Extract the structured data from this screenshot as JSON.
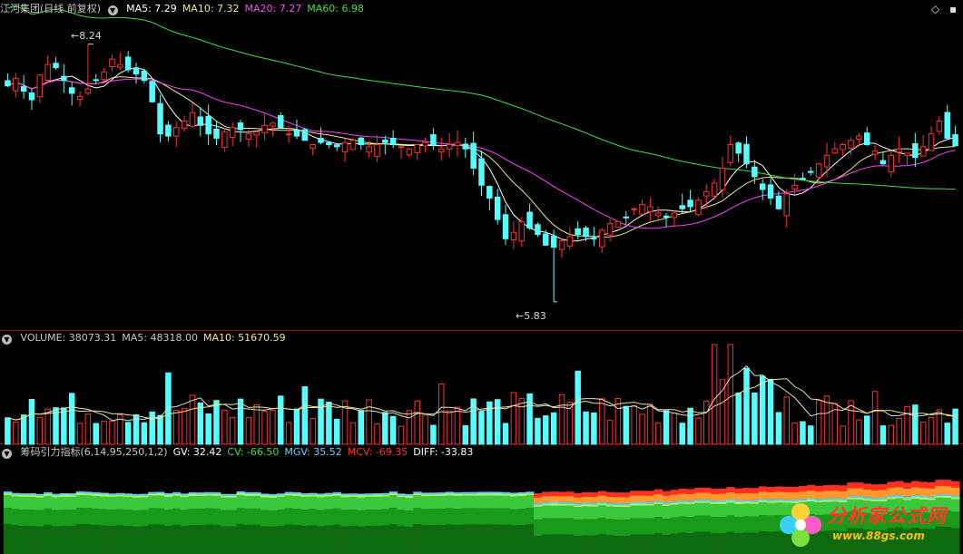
{
  "main_panel": {
    "title": "江河集团(日线 前复权)",
    "ma": [
      {
        "label": "MA5: 7.29",
        "color": "#ffffff"
      },
      {
        "label": "MA10: 7.32",
        "color": "#f0e68c"
      },
      {
        "label": "MA20: 7.27",
        "color": "#ff40ff"
      },
      {
        "label": "MA60: 6.98",
        "color": "#40e040"
      }
    ],
    "high_label": "8.24",
    "low_label": "5.83"
  },
  "volume_panel": {
    "legend": [
      {
        "label": "VOLUME: 38073.31",
        "color": "#c8c8c8"
      },
      {
        "label": "MA5: 48318.00",
        "color": "#c8c8c8"
      },
      {
        "label": "MA10: 51670.59",
        "color": "#f0e68c"
      }
    ]
  },
  "indicator_panel": {
    "legend": [
      {
        "label": "筹码引力指标(6,14,95,250,1,2)",
        "color": "#c8c8c8"
      },
      {
        "label": "GV: 32.42",
        "color": "#ffffff"
      },
      {
        "label": "CV: -66.50",
        "color": "#40e040"
      },
      {
        "label": "MGV: 35.52",
        "color": "#6fd0ff"
      },
      {
        "label": "MCV: -69.35",
        "color": "#ff3030"
      },
      {
        "label": "DIFF: -33.83",
        "color": "#ffffff"
      }
    ]
  },
  "colors": {
    "up": "#ff3030",
    "down": "#54ffff",
    "divider": "#b00000"
  },
  "watermark": {
    "cn": "分析家公式网",
    "url": "www.88gs.com"
  },
  "chart_data": {
    "type": "candlestick",
    "ylim": [
      5.6,
      8.5
    ],
    "high": 8.24,
    "low": 5.83,
    "ma_last": {
      "MA5": 7.29,
      "MA10": 7.32,
      "MA20": 7.27,
      "MA60": 6.98
    },
    "volume_last": {
      "VOLUME": 38073.31,
      "MA5": 48318.0,
      "MA10": 51670.59
    },
    "indicator_last": {
      "GV": 32.42,
      "CV": -66.5,
      "MGV": 35.52,
      "MCV": -69.35,
      "DIFF": -33.83
    },
    "close_path": [
      7.85,
      7.92,
      7.8,
      7.72,
      7.95,
      8.05,
      8.02,
      7.9,
      7.78,
      7.75,
      7.82,
      7.9,
      7.98,
      8.1,
      8.05,
      8.0,
      7.96,
      7.9,
      7.7,
      7.4,
      7.38,
      7.46,
      7.52,
      7.6,
      7.48,
      7.4,
      7.36,
      7.42,
      7.46,
      7.44,
      7.4,
      7.42,
      7.48,
      7.5,
      7.46,
      7.4,
      7.38,
      7.34,
      7.3,
      7.32,
      7.3,
      7.28,
      7.32,
      7.34,
      7.3,
      7.28,
      7.3,
      7.32,
      7.3,
      7.28,
      7.26,
      7.3,
      7.32,
      7.3,
      7.26,
      7.3,
      7.32,
      7.26,
      7.08,
      6.92,
      6.8,
      6.6,
      6.42,
      6.48,
      6.58,
      6.52,
      6.46,
      6.36,
      6.34,
      6.4,
      6.44,
      6.46,
      6.44,
      6.42,
      6.5,
      6.56,
      6.58,
      6.62,
      6.7,
      6.74,
      6.72,
      6.66,
      6.62,
      6.66,
      6.7,
      6.72,
      6.78,
      6.86,
      6.94,
      7.08,
      7.3,
      7.22,
      7.12,
      7.0,
      6.88,
      6.8,
      6.7,
      6.84,
      6.92,
      6.98,
      7.04,
      7.12,
      7.2,
      7.26,
      7.3,
      7.34,
      7.38,
      7.3,
      7.24,
      7.12,
      7.2,
      7.26,
      7.22,
      7.18,
      7.28,
      7.4,
      7.52,
      7.36,
      7.29
    ]
  }
}
